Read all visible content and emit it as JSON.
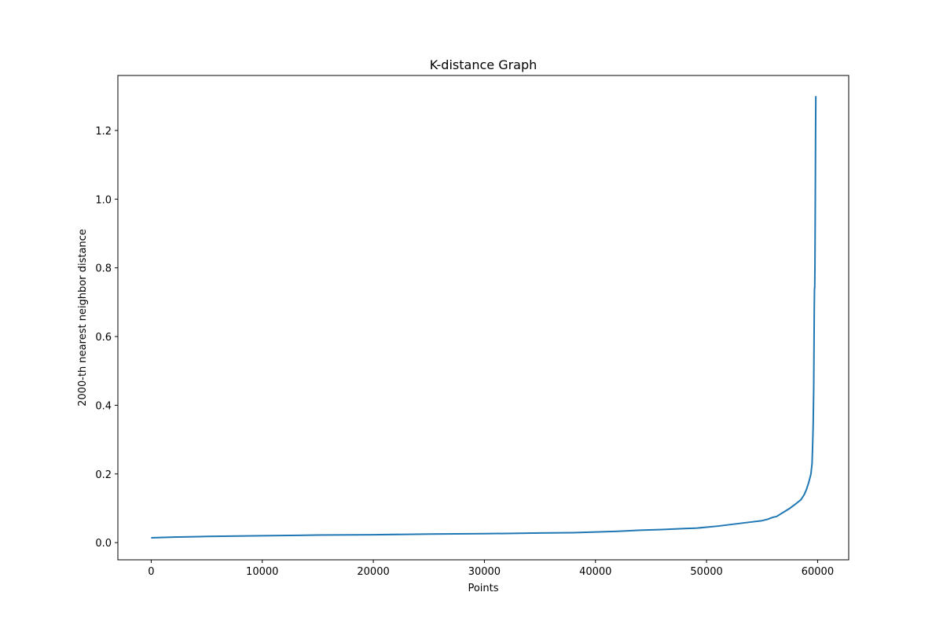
{
  "chart_data": {
    "type": "line",
    "title": "K-distance Graph",
    "xlabel": "Points",
    "ylabel": "2000-th nearest neighbor distance",
    "xlim": [
      -3000,
      62800
    ],
    "ylim": [
      -0.05,
      1.36
    ],
    "xticks": [
      0,
      10000,
      20000,
      30000,
      40000,
      50000,
      60000
    ],
    "xtick_labels": [
      "0",
      "10000",
      "20000",
      "30000",
      "40000",
      "50000",
      "60000"
    ],
    "yticks": [
      0.0,
      0.2,
      0.4,
      0.6,
      0.8,
      1.0,
      1.2
    ],
    "ytick_labels": [
      "0.0",
      "0.2",
      "0.4",
      "0.6",
      "0.8",
      "1.0",
      "1.2"
    ],
    "grid": false,
    "colors": {
      "line": "#1f77b4"
    },
    "series": [
      {
        "x": [
          0,
          2000,
          5000,
          10000,
          15000,
          20000,
          25000,
          30000,
          35000,
          38000,
          40000,
          42000,
          44000,
          46000,
          48000,
          49000,
          50000,
          51000,
          52000,
          53000,
          54000,
          55000,
          55500,
          56000,
          56300,
          56600,
          57000,
          57500,
          58000,
          58500,
          58800,
          59000,
          59200,
          59400,
          59500,
          59550,
          59600,
          59650,
          59700,
          59720,
          59740,
          59760,
          59780,
          59800,
          59820,
          59840
        ],
        "y": [
          0.014,
          0.016,
          0.018,
          0.02,
          0.022,
          0.023,
          0.025,
          0.026,
          0.028,
          0.029,
          0.031,
          0.033,
          0.036,
          0.038,
          0.041,
          0.042,
          0.045,
          0.048,
          0.052,
          0.056,
          0.06,
          0.064,
          0.068,
          0.074,
          0.076,
          0.082,
          0.09,
          0.1,
          0.112,
          0.125,
          0.14,
          0.155,
          0.175,
          0.2,
          0.23,
          0.28,
          0.34,
          0.45,
          0.68,
          0.74,
          0.74,
          0.8,
          0.92,
          1.05,
          1.2,
          1.3
        ]
      }
    ]
  }
}
